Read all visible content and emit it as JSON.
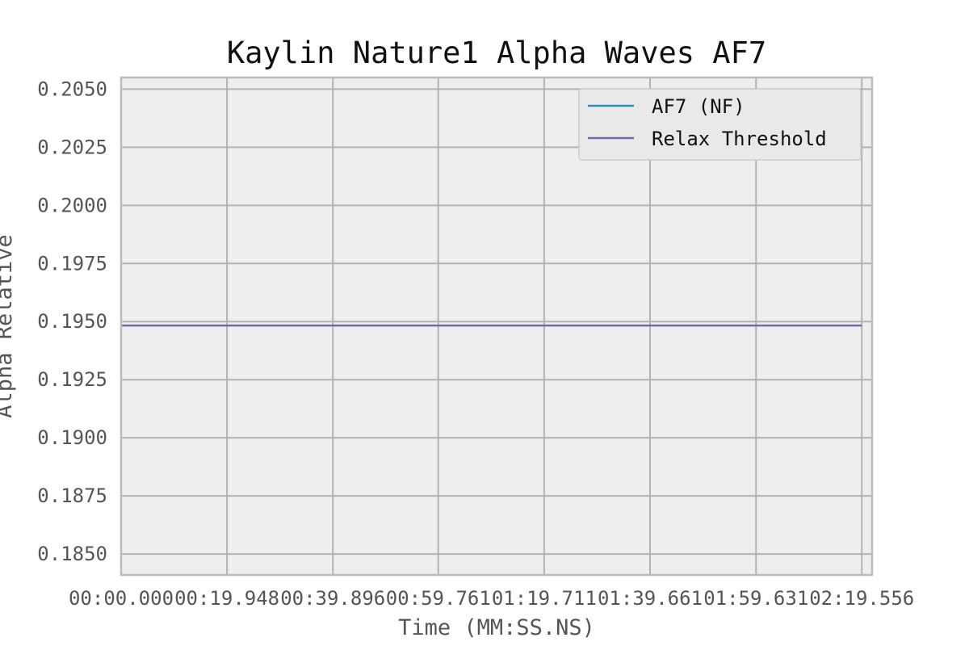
{
  "chart_data": {
    "type": "line",
    "title": "Kaylin Nature1 Alpha Waves AF7",
    "xlabel": "Time (MM:SS.NS)",
    "ylabel": "Alpha Relative",
    "x_ticks": [
      "00:00.000",
      "00:19.948",
      "00:39.896",
      "00:59.761",
      "01:19.711",
      "01:39.661",
      "01:59.631",
      "02:19.556"
    ],
    "y_ticks": [
      "0.1850",
      "0.1875",
      "0.1900",
      "0.1925",
      "0.1950",
      "0.1975",
      "0.2000",
      "0.2025",
      "0.2050"
    ],
    "xlim": [
      "00:00.000",
      "02:21.5"
    ],
    "ylim": [
      0.1841,
      0.2055
    ],
    "grid": true,
    "legend_position": "top-right",
    "series": [
      {
        "name": "AF7 (NF)",
        "color": "#348abd",
        "x": [],
        "y": []
      },
      {
        "name": "Relax Threshold",
        "color": "#7a68a6",
        "x": [
          "00:00.000",
          "02:19.556"
        ],
        "y": [
          0.19483,
          0.19483
        ]
      }
    ]
  }
}
